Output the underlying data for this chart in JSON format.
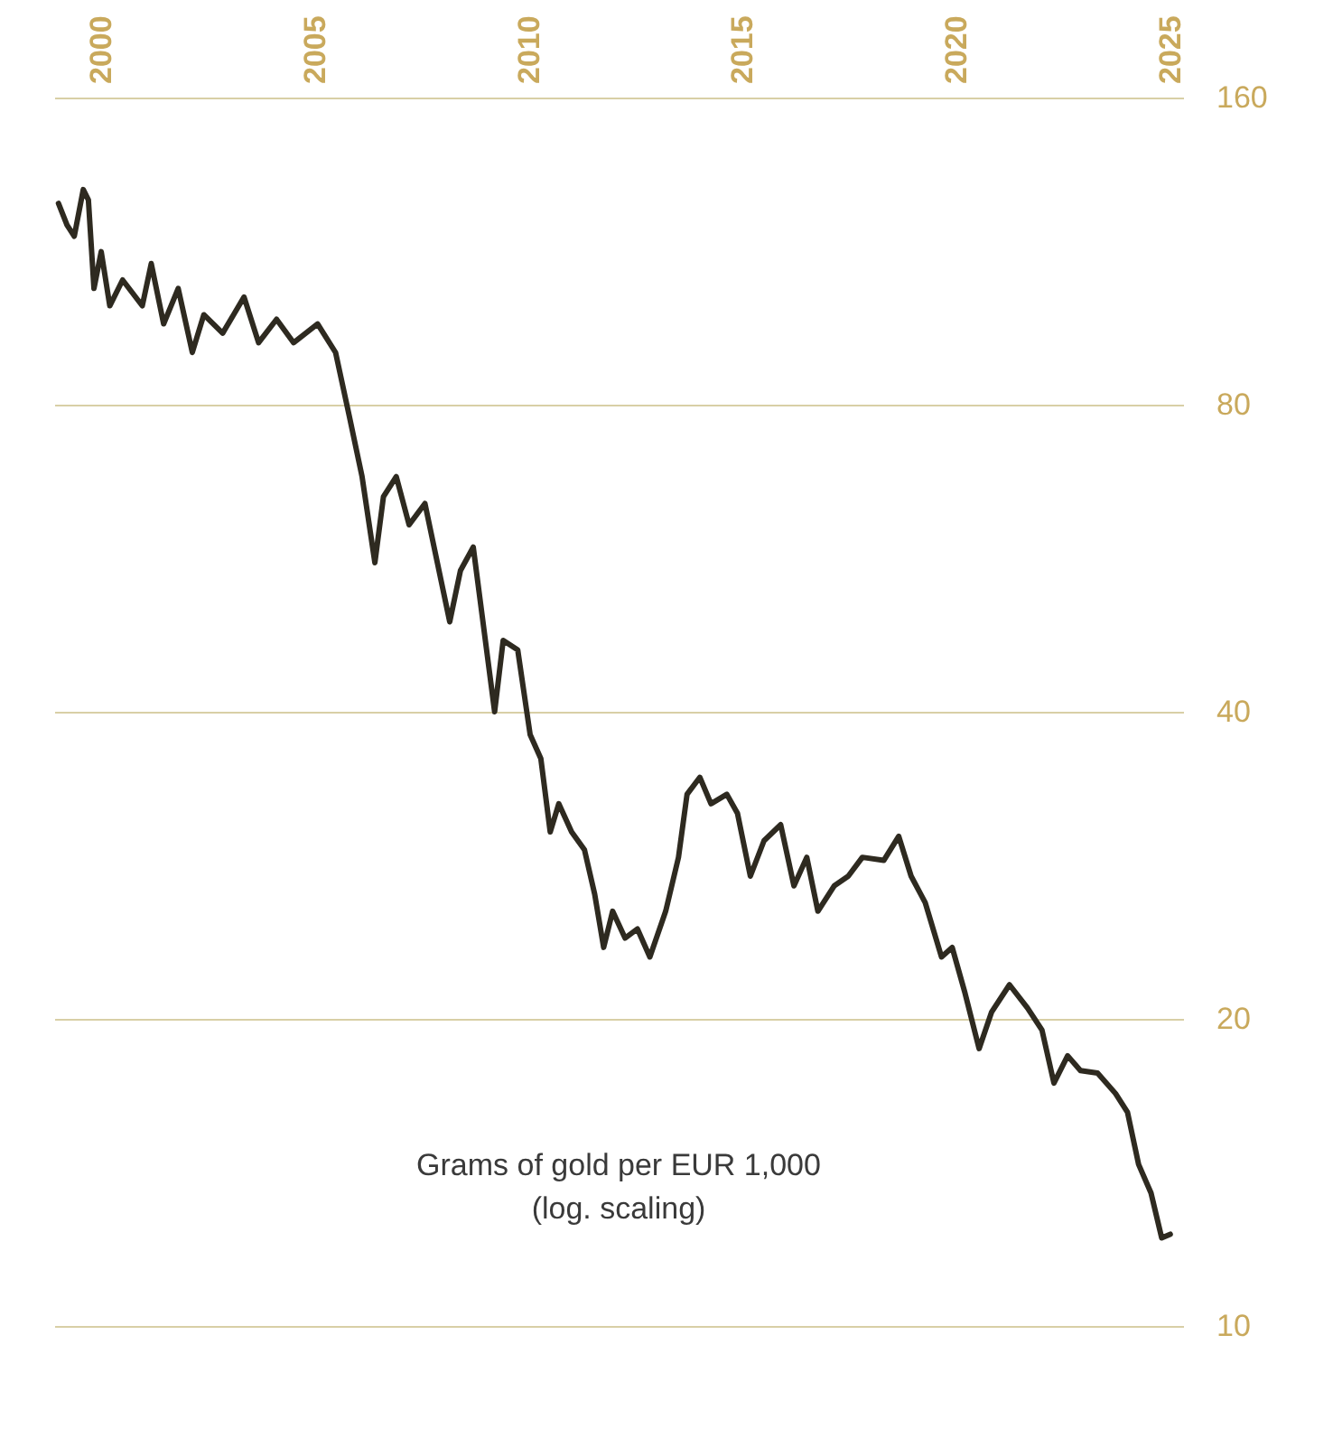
{
  "chart_data": {
    "type": "line",
    "annotations": [
      "Grams of gold per EUR 1,000",
      "(log. scaling)"
    ],
    "x": [
      1999.0,
      1999.2,
      1999.37,
      1999.58,
      1999.7,
      1999.83,
      2000.0,
      2000.2,
      2000.5,
      2000.96,
      2001.17,
      2001.46,
      2001.8,
      2002.13,
      2002.4,
      2002.84,
      2003.34,
      2003.68,
      2004.1,
      2004.5,
      2005.06,
      2005.48,
      2005.8,
      2006.1,
      2006.4,
      2006.6,
      2006.9,
      2007.2,
      2007.57,
      2007.86,
      2008.15,
      2008.4,
      2008.7,
      2008.9,
      2009.2,
      2009.4,
      2009.74,
      2010.03,
      2010.28,
      2010.5,
      2010.7,
      2011.0,
      2011.3,
      2011.54,
      2011.75,
      2011.96,
      2012.25,
      2012.54,
      2012.83,
      2013.2,
      2013.5,
      2013.7,
      2014.0,
      2014.26,
      2014.63,
      2014.88,
      2015.18,
      2015.5,
      2015.89,
      2016.2,
      2016.5,
      2016.76,
      2017.14,
      2017.47,
      2017.8,
      2018.3,
      2018.65,
      2018.94,
      2019.27,
      2019.65,
      2019.9,
      2020.2,
      2020.53,
      2020.82,
      2021.24,
      2021.66,
      2022.0,
      2022.28,
      2022.6,
      2022.9,
      2023.3,
      2023.72,
      2024.0,
      2024.26,
      2024.55,
      2024.8,
      2025.0
    ],
    "series": [
      {
        "color": "#2e2a20",
        "values": [
          126,
          120,
          117,
          130,
          127,
          104,
          113,
          100,
          106,
          100,
          110,
          96,
          104,
          90,
          98,
          94,
          102,
          92,
          97,
          92,
          96,
          90,
          78,
          68,
          56,
          65,
          68,
          61,
          64,
          56,
          49,
          55,
          58,
          50,
          40,
          47,
          46,
          38,
          36,
          30.5,
          32.5,
          30.5,
          29.3,
          26.5,
          23.5,
          25.5,
          24,
          24.5,
          23,
          25.5,
          28.8,
          33.2,
          34.5,
          32.5,
          33.2,
          31.8,
          27.6,
          29.9,
          31,
          27,
          28.8,
          25.5,
          27,
          27.6,
          28.8,
          28.6,
          30.2,
          27.6,
          26,
          23,
          23.5,
          21.2,
          18.7,
          20.3,
          21.6,
          20.5,
          19.5,
          17.3,
          18.4,
          17.8,
          17.7,
          16.9,
          16.2,
          14.4,
          13.5,
          12.2,
          12.3
        ]
      }
    ],
    "xlim": [
      1998.9,
      2025.3
    ],
    "xticks": [
      2000,
      2005,
      2010,
      2015,
      2020,
      2025
    ],
    "ylim": [
      10,
      160
    ],
    "yticks": [
      10,
      20,
      40,
      80,
      160
    ],
    "log": "y",
    "grid": "y"
  }
}
